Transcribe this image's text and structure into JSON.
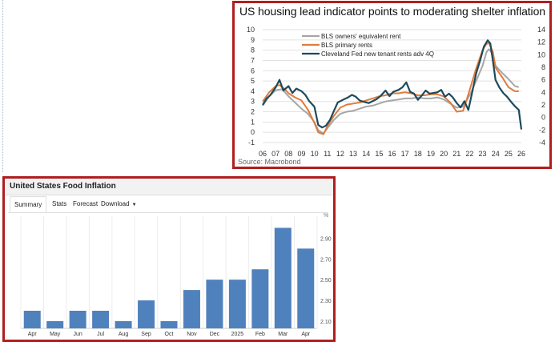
{
  "chart_data": [
    {
      "type": "line",
      "title": "US housing lead indicator points to moderating shelter inflation",
      "source": "Source: Macrobond",
      "x_tick_labels": [
        "06",
        "07",
        "08",
        "09",
        "10",
        "11",
        "12",
        "13",
        "14",
        "15",
        "16",
        "17",
        "18",
        "19",
        "20",
        "21",
        "22",
        "23",
        "24",
        "25",
        "26"
      ],
      "xlim": [
        2006,
        2026
      ],
      "left_axis": {
        "ylim": [
          -1,
          10
        ],
        "ticks": [
          -1,
          0,
          1,
          2,
          3,
          4,
          5,
          6,
          7,
          8,
          9,
          10
        ]
      },
      "right_axis": {
        "ylim": [
          -4,
          14
        ],
        "ticks": [
          -4,
          -2,
          0,
          2,
          4,
          6,
          8,
          10,
          12,
          14
        ]
      },
      "legend_position": "top-left",
      "grid": "horizontal",
      "series": [
        {
          "name": "BLS owners' equivalent rent",
          "color": "#a6a6a6",
          "axis": "left",
          "points": [
            [
              2006,
              2.6
            ],
            [
              2006.5,
              3.5
            ],
            [
              2007,
              4.1
            ],
            [
              2007.5,
              4.2
            ],
            [
              2008,
              3.5
            ],
            [
              2008.5,
              2.9
            ],
            [
              2009,
              2.3
            ],
            [
              2009.5,
              1.8
            ],
            [
              2010,
              1.0
            ],
            [
              2010.3,
              0.2
            ],
            [
              2010.7,
              -0.1
            ],
            [
              2011,
              0.4
            ],
            [
              2011.5,
              1.2
            ],
            [
              2012,
              1.8
            ],
            [
              2012.5,
              2.0
            ],
            [
              2013,
              2.1
            ],
            [
              2013.5,
              2.3
            ],
            [
              2014,
              2.5
            ],
            [
              2014.5,
              2.6
            ],
            [
              2015,
              2.8
            ],
            [
              2015.5,
              3.0
            ],
            [
              2016,
              3.1
            ],
            [
              2016.5,
              3.2
            ],
            [
              2017,
              3.3
            ],
            [
              2017.5,
              3.3
            ],
            [
              2018,
              3.4
            ],
            [
              2018.5,
              3.3
            ],
            [
              2019,
              3.3
            ],
            [
              2019.5,
              3.4
            ],
            [
              2020,
              3.2
            ],
            [
              2020.5,
              2.8
            ],
            [
              2021,
              2.4
            ],
            [
              2021.5,
              2.5
            ],
            [
              2022,
              3.6
            ],
            [
              2022.5,
              5.0
            ],
            [
              2023,
              6.5
            ],
            [
              2023.3,
              7.8
            ],
            [
              2023.5,
              8.1
            ],
            [
              2023.8,
              7.6
            ],
            [
              2024,
              6.5
            ],
            [
              2024.5,
              5.8
            ],
            [
              2025,
              5.2
            ],
            [
              2025.5,
              4.5
            ],
            [
              2025.8,
              4.4
            ]
          ]
        },
        {
          "name": "BLS primary rents",
          "color": "#e07b39",
          "axis": "left",
          "points": [
            [
              2006,
              3.0
            ],
            [
              2006.5,
              3.9
            ],
            [
              2007,
              4.5
            ],
            [
              2007.3,
              4.6
            ],
            [
              2007.7,
              4.2
            ],
            [
              2008,
              3.8
            ],
            [
              2008.5,
              3.4
            ],
            [
              2009,
              3.1
            ],
            [
              2009.5,
              2.2
            ],
            [
              2010,
              0.9
            ],
            [
              2010.3,
              0.0
            ],
            [
              2010.7,
              -0.2
            ],
            [
              2011,
              0.6
            ],
            [
              2011.5,
              1.6
            ],
            [
              2012,
              2.4
            ],
            [
              2012.5,
              2.7
            ],
            [
              2013,
              2.8
            ],
            [
              2013.5,
              2.9
            ],
            [
              2014,
              3.1
            ],
            [
              2014.5,
              3.3
            ],
            [
              2015,
              3.5
            ],
            [
              2015.5,
              3.6
            ],
            [
              2016,
              3.8
            ],
            [
              2016.5,
              3.8
            ],
            [
              2017,
              3.9
            ],
            [
              2017.5,
              3.8
            ],
            [
              2018,
              3.6
            ],
            [
              2018.5,
              3.6
            ],
            [
              2019,
              3.7
            ],
            [
              2019.5,
              3.7
            ],
            [
              2020,
              3.5
            ],
            [
              2020.5,
              2.9
            ],
            [
              2021,
              2.0
            ],
            [
              2021.5,
              2.1
            ],
            [
              2022,
              4.1
            ],
            [
              2022.5,
              6.2
            ],
            [
              2023,
              8.0
            ],
            [
              2023.3,
              8.6
            ],
            [
              2023.5,
              8.7
            ],
            [
              2023.8,
              7.8
            ],
            [
              2024,
              6.3
            ],
            [
              2024.5,
              5.4
            ],
            [
              2025,
              4.4
            ],
            [
              2025.5,
              4.0
            ],
            [
              2025.8,
              4.0
            ]
          ]
        },
        {
          "name": "Cleveland Fed new tenant rents adv 4Q",
          "color": "#1d4a5c",
          "axis": "right",
          "points": [
            [
              2006,
              2.0
            ],
            [
              2006.3,
              3.0
            ],
            [
              2006.6,
              3.6
            ],
            [
              2007,
              4.8
            ],
            [
              2007.3,
              6.0
            ],
            [
              2007.6,
              4.3
            ],
            [
              2008,
              5.0
            ],
            [
              2008.3,
              3.9
            ],
            [
              2008.6,
              4.6
            ],
            [
              2009,
              4.2
            ],
            [
              2009.3,
              3.6
            ],
            [
              2009.6,
              2.6
            ],
            [
              2010,
              1.7
            ],
            [
              2010.3,
              -1.2
            ],
            [
              2010.6,
              -1.6
            ],
            [
              2010.9,
              -1.3
            ],
            [
              2011.2,
              -0.4
            ],
            [
              2011.5,
              1.0
            ],
            [
              2011.8,
              2.4
            ],
            [
              2012,
              2.6
            ],
            [
              2012.3,
              2.9
            ],
            [
              2012.6,
              3.2
            ],
            [
              2012.9,
              3.6
            ],
            [
              2013.2,
              3.3
            ],
            [
              2013.5,
              2.7
            ],
            [
              2013.8,
              2.5
            ],
            [
              2014.2,
              2.3
            ],
            [
              2014.5,
              2.6
            ],
            [
              2014.8,
              2.9
            ],
            [
              2015.1,
              3.4
            ],
            [
              2015.5,
              4.3
            ],
            [
              2015.8,
              3.4
            ],
            [
              2016.1,
              4.1
            ],
            [
              2016.5,
              4.4
            ],
            [
              2016.8,
              4.8
            ],
            [
              2017.1,
              5.6
            ],
            [
              2017.4,
              4.1
            ],
            [
              2017.7,
              3.8
            ],
            [
              2018,
              2.8
            ],
            [
              2018.3,
              3.5
            ],
            [
              2018.6,
              4.3
            ],
            [
              2018.9,
              3.8
            ],
            [
              2019.2,
              3.9
            ],
            [
              2019.5,
              4.0
            ],
            [
              2019.8,
              4.4
            ],
            [
              2020.1,
              3.3
            ],
            [
              2020.4,
              3.8
            ],
            [
              2020.7,
              3.2
            ],
            [
              2021,
              2.3
            ],
            [
              2021.3,
              1.6
            ],
            [
              2021.6,
              2.6
            ],
            [
              2021.9,
              1.2
            ],
            [
              2022.2,
              4.0
            ],
            [
              2022.5,
              7.0
            ],
            [
              2022.8,
              9.0
            ],
            [
              2023.1,
              11.3
            ],
            [
              2023.4,
              12.3
            ],
            [
              2023.6,
              11.8
            ],
            [
              2023.8,
              9.0
            ],
            [
              2024,
              6.0
            ],
            [
              2024.3,
              4.8
            ],
            [
              2024.6,
              3.9
            ],
            [
              2024.9,
              3.3
            ],
            [
              2025.2,
              2.5
            ],
            [
              2025.5,
              1.8
            ],
            [
              2025.8,
              1.2
            ],
            [
              2026,
              -1.9
            ]
          ]
        }
      ]
    },
    {
      "type": "bar",
      "title": "United States Food Inflation",
      "tabs": [
        "Summary",
        "Stats",
        "Forecast",
        "Download"
      ],
      "active_tab": "Summary",
      "unit_label": "%",
      "categories": [
        "Apr",
        "May",
        "Jun",
        "Jul",
        "Aug",
        "Sep",
        "Oct",
        "Nov",
        "Dec",
        "2025",
        "Feb",
        "Mar",
        "Apr"
      ],
      "values": [
        2.2,
        2.1,
        2.2,
        2.2,
        2.1,
        2.3,
        2.1,
        2.4,
        2.5,
        2.5,
        2.6,
        3.0,
        2.8
      ],
      "y_ticks": [
        "2.10",
        "2.30",
        "2.50",
        "2.70",
        "2.90"
      ],
      "ylim": [
        2.03,
        3.05
      ],
      "bar_color": "#4f81bd",
      "grid": "vertical"
    }
  ]
}
